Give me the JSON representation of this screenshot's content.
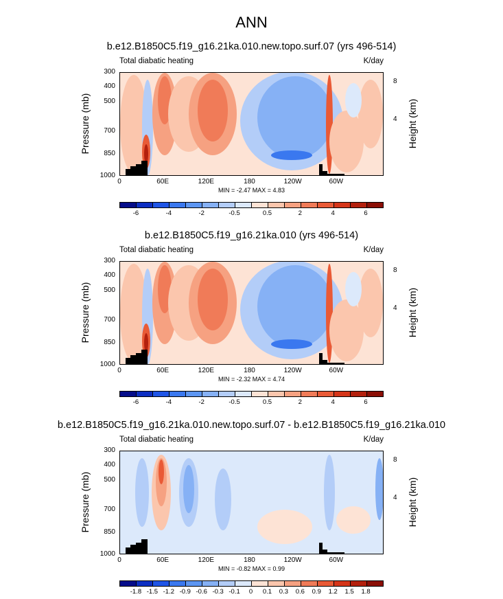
{
  "figure": {
    "title": "ANN",
    "xticks": [
      "0",
      "60E",
      "120E",
      "180",
      "120W",
      "60W"
    ],
    "yticks_pressure": [
      "300",
      "400",
      "500",
      "700",
      "850",
      "1000"
    ],
    "yticks_height": [
      "8",
      "4"
    ],
    "ylabel_left": "Pressure (mb)",
    "ylabel_right": "Height (km)"
  },
  "chart_data": [
    {
      "type": "heatmap",
      "title": "b.e12.B1850C5.f19_g16.21ka.010.new.topo.surf.07 (yrs 496-514)",
      "left_label": "Total diabatic heating",
      "right_label": "K/day",
      "x": "longitude 0–360",
      "y": "pressure 1000–300 mb",
      "min_text": "MIN = -2.47",
      "max_text": "MAX =  4.83",
      "colorbar_labels": [
        "-6",
        "-4",
        "-2",
        "-0.5",
        "0.5",
        "2",
        "4",
        "6"
      ],
      "colorbar_colors": [
        "#050d8a",
        "#0d2fc2",
        "#1f55e6",
        "#3a78ef",
        "#5d96f2",
        "#86b1f5",
        "#b3cdf8",
        "#dce9fb",
        "#fde3d5",
        "#fbc6ad",
        "#f6a181",
        "#f07b58",
        "#e95a36",
        "#d53519",
        "#b3200d",
        "#8b0f06"
      ]
    },
    {
      "type": "heatmap",
      "title": "b.e12.B1850C5.f19_g16.21ka.010 (yrs 496-514)",
      "left_label": "Total diabatic heating",
      "right_label": "K/day",
      "x": "longitude 0–360",
      "y": "pressure 1000–300 mb",
      "min_text": "MIN = -2.32",
      "max_text": "MAX =  4.74",
      "colorbar_labels": [
        "-6",
        "-4",
        "-2",
        "-0.5",
        "0.5",
        "2",
        "4",
        "6"
      ],
      "colorbar_colors": [
        "#050d8a",
        "#0d2fc2",
        "#1f55e6",
        "#3a78ef",
        "#5d96f2",
        "#86b1f5",
        "#b3cdf8",
        "#dce9fb",
        "#fde3d5",
        "#fbc6ad",
        "#f6a181",
        "#f07b58",
        "#e95a36",
        "#d53519",
        "#b3200d",
        "#8b0f06"
      ]
    },
    {
      "type": "heatmap",
      "title": "b.e12.B1850C5.f19_g16.21ka.010.new.topo.surf.07 - b.e12.B1850C5.f19_g16.21ka.010",
      "left_label": "Total diabatic heating",
      "right_label": "K/day",
      "x": "longitude 0–360",
      "y": "pressure 1000–300 mb",
      "min_text": "MIN = -0.82",
      "max_text": "MAX =  0.99",
      "colorbar_labels": [
        "-1.8",
        "-1.5",
        "-1.2",
        "-0.9",
        "-0.6",
        "-0.3",
        "-0.1",
        "0",
        "0.1",
        "0.3",
        "0.6",
        "0.9",
        "1.2",
        "1.5",
        "1.8"
      ],
      "colorbar_colors": [
        "#050d8a",
        "#0d2fc2",
        "#1f55e6",
        "#3a78ef",
        "#5d96f2",
        "#86b1f5",
        "#b3cdf8",
        "#dce9fb",
        "#fde3d5",
        "#fbc6ad",
        "#f6a181",
        "#f07b58",
        "#e95a36",
        "#d53519",
        "#b3200d",
        "#8b0f06"
      ]
    }
  ]
}
